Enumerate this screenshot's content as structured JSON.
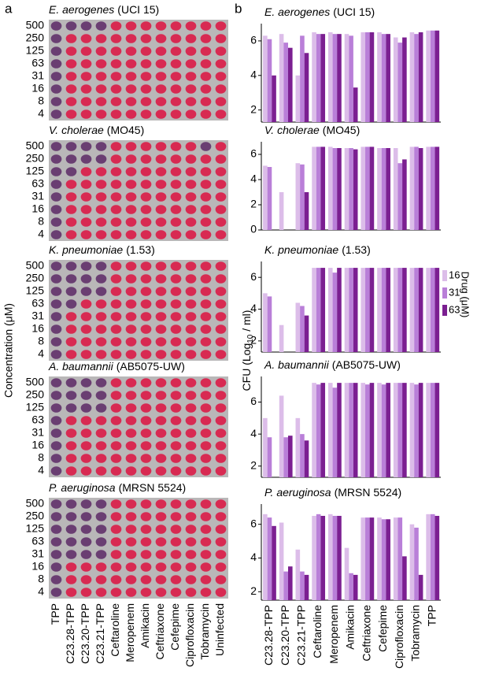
{
  "panel_labels": [
    "a",
    "b"
  ],
  "plates": {
    "y_label": "Concentration (μM)",
    "rows": [
      "500",
      "250",
      "125",
      "63",
      "31",
      "16",
      "8",
      "4"
    ],
    "columns": [
      "TPP",
      "C23.28-TPP",
      "C23.20-TPP",
      "C23.21-TPP",
      "Ceftaroline",
      "Meropenem",
      "Amikacin",
      "Ceftriaxone",
      "Cefepime",
      "Ciprofloxacin",
      "Tobramycin",
      "Uninfected"
    ],
    "titles": [
      {
        "species": "E. aerogenes",
        "strain": "(UCI 15)"
      },
      {
        "species": "V. cholerae",
        "strain": "(MO45)"
      },
      {
        "species": "K. pneumoniae",
        "strain": "(1.53)"
      },
      {
        "species": "A. baumannii",
        "strain": "(AB5075-UW)"
      },
      {
        "species": "P. aeruginosa",
        "strain": "(MRSN 5524)"
      }
    ]
  },
  "y_label": {
    "main": "CFU (Log",
    "sub": "10",
    "end": " / ml)"
  },
  "legend_title": "Drug (μM)",
  "chart_data": [
    {
      "type": "bar",
      "title": {
        "species": "E. aerogenes",
        "strain": "(UCI 15)"
      },
      "ylim": [
        1.3,
        7
      ],
      "yticks": [
        2,
        4,
        6
      ],
      "series": [
        {
          "name": "16",
          "color": "#dcbde9",
          "values": [
            6.3,
            6.4,
            4.0,
            6.5,
            6.5,
            6.4,
            6.5,
            6.5,
            6.2,
            6.5,
            6.6
          ]
        },
        {
          "name": "31",
          "color": "#b97fd8",
          "values": [
            6.1,
            5.9,
            6.3,
            6.4,
            6.4,
            6.3,
            6.5,
            6.4,
            5.9,
            6.4,
            6.6
          ]
        },
        {
          "name": "63",
          "color": "#7b1f91",
          "values": [
            4.0,
            5.6,
            5.3,
            6.4,
            6.4,
            3.3,
            6.5,
            6.4,
            6.2,
            6.5,
            6.6
          ]
        }
      ]
    },
    {
      "type": "bar",
      "title": {
        "species": "V. cholerae",
        "strain": "(MO45)"
      },
      "ylim": [
        0,
        7
      ],
      "yticks": [
        0,
        2,
        4,
        6
      ],
      "series": [
        {
          "name": "16",
          "color": "#dcbde9",
          "values": [
            5.1,
            3.0,
            5.3,
            6.6,
            6.6,
            6.5,
            6.6,
            6.5,
            6.5,
            6.6,
            6.6
          ]
        },
        {
          "name": "31",
          "color": "#b97fd8",
          "values": [
            5.0,
            0,
            5.2,
            6.6,
            6.5,
            6.5,
            6.6,
            6.5,
            5.3,
            6.6,
            6.6
          ]
        },
        {
          "name": "63",
          "color": "#7b1f91",
          "values": [
            0,
            0,
            3.0,
            6.6,
            6.5,
            6.4,
            6.6,
            6.5,
            5.6,
            6.5,
            6.6
          ]
        }
      ]
    },
    {
      "type": "bar",
      "title": {
        "species": "K. pneumoniae",
        "strain": "(1.53)"
      },
      "ylim": [
        1.3,
        7
      ],
      "yticks": [
        2,
        4,
        6
      ],
      "series": [
        {
          "name": "16",
          "color": "#dcbde9",
          "values": [
            5.0,
            3.0,
            4.4,
            6.6,
            6.6,
            6.6,
            6.6,
            6.6,
            6.6,
            6.6,
            6.6
          ]
        },
        {
          "name": "31",
          "color": "#b97fd8",
          "values": [
            4.8,
            1.3,
            4.2,
            6.6,
            6.3,
            6.6,
            6.6,
            6.6,
            6.6,
            6.6,
            6.6
          ]
        },
        {
          "name": "63",
          "color": "#7b1f91",
          "values": [
            1.3,
            1.3,
            3.6,
            6.6,
            6.6,
            6.6,
            6.6,
            6.6,
            6.6,
            6.6,
            6.6
          ]
        }
      ]
    },
    {
      "type": "bar",
      "title": {
        "species": "A. baumannii",
        "strain": "(AB5075-UW)"
      },
      "ylim": [
        1.3,
        7.6
      ],
      "yticks": [
        2,
        4,
        6
      ],
      "series": [
        {
          "name": "16",
          "color": "#dcbde9",
          "values": [
            5.0,
            6.4,
            5.0,
            7.2,
            7.2,
            7.2,
            7.2,
            7.2,
            7.2,
            7.2,
            7.2
          ]
        },
        {
          "name": "31",
          "color": "#b97fd8",
          "values": [
            3.8,
            3.8,
            4.0,
            7.1,
            6.9,
            7.2,
            7.1,
            7.1,
            7.2,
            7.1,
            7.2
          ]
        },
        {
          "name": "63",
          "color": "#7b1f91",
          "values": [
            1.3,
            3.9,
            3.6,
            7.2,
            7.2,
            7.2,
            7.2,
            7.2,
            7.2,
            7.2,
            7.2
          ]
        }
      ]
    },
    {
      "type": "bar",
      "title": {
        "species": "P. aeruginosa",
        "strain": "(MRSN 5524)"
      },
      "ylim": [
        1.5,
        7.2
      ],
      "yticks": [
        2,
        4,
        6
      ],
      "categories": [
        "C23.28-TPP",
        "C23.20-TPP",
        "C23.21-TPP",
        "Ceftaroline",
        "Meropenem",
        "Amikacin",
        "Ceftriaxone",
        "Cefepime",
        "Ciprofloxacin",
        "Tobramycin",
        "TPP"
      ],
      "series": [
        {
          "name": "16",
          "color": "#dcbde9",
          "values": [
            6.6,
            6.1,
            4.5,
            6.5,
            6.6,
            4.6,
            6.4,
            6.4,
            6.4,
            6.0,
            6.6
          ]
        },
        {
          "name": "31",
          "color": "#b97fd8",
          "values": [
            6.4,
            3.2,
            3.2,
            6.6,
            6.5,
            3.1,
            6.4,
            6.3,
            6.4,
            5.8,
            6.6
          ]
        },
        {
          "name": "63",
          "color": "#7b1f91",
          "values": [
            5.9,
            3.5,
            3.0,
            6.5,
            6.5,
            3.0,
            6.4,
            6.3,
            4.1,
            3.0,
            6.5
          ]
        }
      ]
    }
  ]
}
